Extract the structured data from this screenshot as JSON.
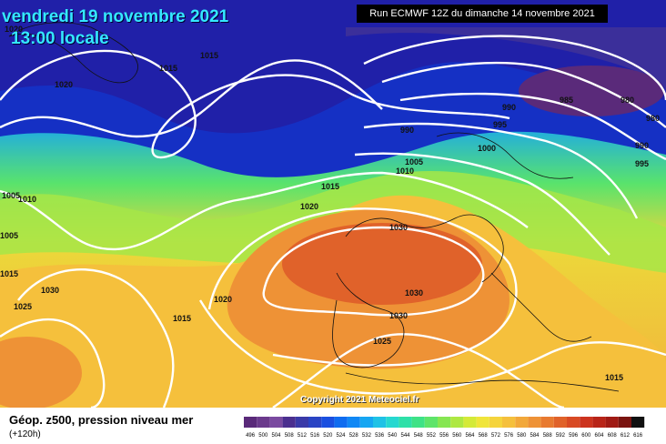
{
  "header": {
    "date": "vendredi 19 novembre 2021",
    "time": "13:00 locale",
    "run": "Run ECMWF 12Z du dimanche 14 novembre 2021"
  },
  "copyright": "Copyright 2021 Meteociel.fr",
  "footer": {
    "title": "Géop. z500, pression niveau mer",
    "subtitle": "(+120h)"
  },
  "isobars": {
    "l1015a": "1015",
    "l1015b": "1015",
    "l1020a": "1020",
    "l1020b": "1020",
    "l1010a": "1010",
    "l1005a": "1005",
    "l990": "990",
    "l995a": "995",
    "l990b": "990",
    "l985": "985",
    "l980a": "980",
    "l980b": "980",
    "l990c": "990",
    "l995b": "995",
    "l1000": "1000",
    "l1005b": "1005",
    "l1010b": "1010",
    "l1015c": "1015",
    "l1020c": "1020",
    "l1030a": "1030",
    "l1030b": "1030",
    "l1030c": "1030",
    "l1025a": "1025",
    "l1020d": "1020",
    "l1015d": "1015",
    "l1030d": "1030",
    "l1025b": "1025",
    "l1015e": "1015",
    "l1010c": "1010",
    "l1005c": "1005",
    "l1015f": "1015"
  },
  "legend": {
    "labels": [
      "496",
      "500",
      "504",
      "508",
      "512",
      "516",
      "520",
      "524",
      "528",
      "532",
      "536",
      "540",
      "544",
      "548",
      "552",
      "556",
      "560",
      "564",
      "568",
      "572",
      "576",
      "580",
      "584",
      "588",
      "592",
      "596",
      "600",
      "604",
      "608",
      "612",
      "616"
    ],
    "colors": [
      "#5a2a7a",
      "#6b3a8c",
      "#7a4aa0",
      "#4b2f8f",
      "#3a3aa8",
      "#2a44c4",
      "#1a4fe0",
      "#0f6cf0",
      "#1188f5",
      "#16a6f2",
      "#1fc2e6",
      "#26d8d0",
      "#2ee0a8",
      "#3ee286",
      "#5ee46a",
      "#86e652",
      "#aee842",
      "#d4ea38",
      "#f0e53a",
      "#f5d43c",
      "#f5c03c",
      "#f2a83a",
      "#ee9236",
      "#e87a30",
      "#e0622a",
      "#d84a24",
      "#cc331e",
      "#b82418",
      "#a01a14",
      "#7a1410",
      "#111111"
    ]
  }
}
